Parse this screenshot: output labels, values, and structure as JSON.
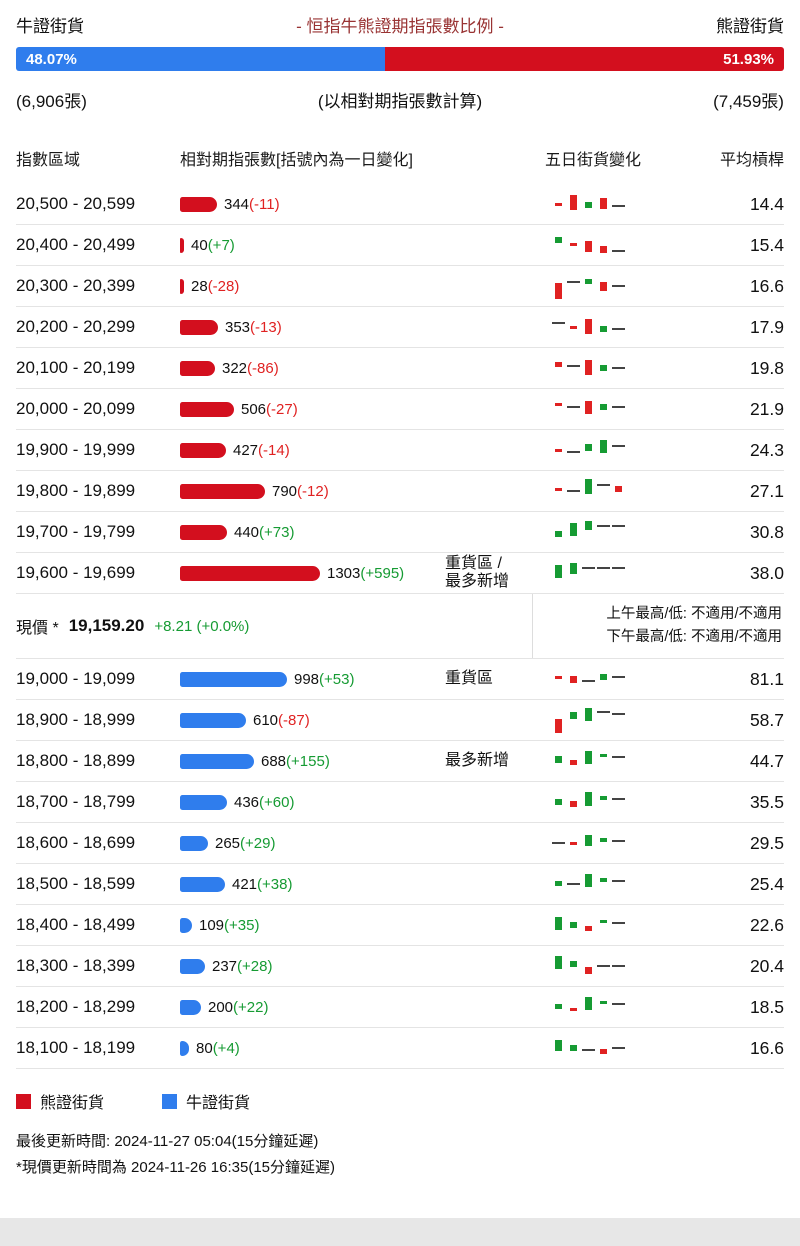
{
  "colors": {
    "bull": "#2f7ded",
    "bear": "#d30f1e",
    "pos": "#169b33",
    "neg": "#e02222",
    "title": "#993333",
    "dash": "#444444"
  },
  "header": {
    "bull_label": "牛證街貨",
    "title": "- 恒指牛熊證期指張數比例 -",
    "bear_label": "熊證街貨",
    "bull_pct": "48.07%",
    "bear_pct": "51.93%",
    "bull_pct_value": 48.07,
    "bull_count": "(6,906張)",
    "calc_note": "(以相對期指張數計算)",
    "bear_count": "(7,459張)"
  },
  "table": {
    "col_range": "指數區域",
    "col_contracts": "相對期指張數[括號內為一日變化]",
    "col_5day": "五日街貨變化",
    "col_leverage": "平均槓桿"
  },
  "max_value": 1303,
  "bar_max_width": 140,
  "bear_rows": [
    {
      "range": "20,500 - 20,599",
      "value": 344,
      "change": -11,
      "leverage": "14.4",
      "tag": "",
      "candles": [
        [
          "r",
          3,
          14
        ],
        [
          "r",
          15,
          6
        ],
        [
          "g",
          6,
          13
        ],
        [
          "r",
          11,
          9
        ],
        [
          "n",
          2,
          16
        ]
      ]
    },
    {
      "range": "20,400 - 20,499",
      "value": 40,
      "change": 7,
      "leverage": "15.4",
      "tag": "",
      "candles": [
        [
          "g",
          6,
          7
        ],
        [
          "r",
          3,
          13
        ],
        [
          "r",
          11,
          11
        ],
        [
          "r",
          7,
          16
        ],
        [
          "n",
          2,
          20
        ]
      ]
    },
    {
      "range": "20,300 - 20,399",
      "value": 28,
      "change": -28,
      "leverage": "16.6",
      "tag": "",
      "candles": [
        [
          "r",
          16,
          12
        ],
        [
          "n",
          2,
          10
        ],
        [
          "g",
          5,
          8
        ],
        [
          "r",
          9,
          11
        ],
        [
          "n",
          2,
          14
        ]
      ]
    },
    {
      "range": "20,200 - 20,299",
      "value": 353,
      "change": -13,
      "leverage": "17.9",
      "tag": "",
      "candles": [
        [
          "n",
          2,
          10
        ],
        [
          "r",
          3,
          14
        ],
        [
          "r",
          15,
          7
        ],
        [
          "g",
          6,
          14
        ],
        [
          "n",
          2,
          16
        ]
      ]
    },
    {
      "range": "20,100 - 20,199",
      "value": 322,
      "change": -86,
      "leverage": "19.8",
      "tag": "",
      "candles": [
        [
          "r",
          5,
          9
        ],
        [
          "n",
          2,
          12
        ],
        [
          "r",
          15,
          7
        ],
        [
          "g",
          6,
          12
        ],
        [
          "n",
          2,
          14
        ]
      ]
    },
    {
      "range": "20,000 - 20,099",
      "value": 506,
      "change": -27,
      "leverage": "21.9",
      "tag": "",
      "candles": [
        [
          "r",
          3,
          9
        ],
        [
          "n",
          2,
          12
        ],
        [
          "r",
          13,
          7
        ],
        [
          "g",
          6,
          10
        ],
        [
          "n",
          2,
          12
        ]
      ]
    },
    {
      "range": "19,900 - 19,999",
      "value": 427,
      "change": -14,
      "leverage": "24.3",
      "tag": "",
      "candles": [
        [
          "r",
          3,
          14
        ],
        [
          "n",
          2,
          16
        ],
        [
          "g",
          7,
          9
        ],
        [
          "g",
          13,
          5
        ],
        [
          "n",
          2,
          10
        ]
      ]
    },
    {
      "range": "19,800 - 19,899",
      "value": 790,
      "change": -12,
      "leverage": "27.1",
      "tag": "",
      "candles": [
        [
          "r",
          3,
          12
        ],
        [
          "n",
          2,
          14
        ],
        [
          "g",
          15,
          3
        ],
        [
          "n",
          2,
          8
        ],
        [
          "r",
          6,
          10
        ]
      ]
    },
    {
      "range": "19,700 - 19,799",
      "value": 440,
      "change": 73,
      "leverage": "30.8",
      "tag": "",
      "candles": [
        [
          "g",
          6,
          14
        ],
        [
          "g",
          13,
          6
        ],
        [
          "g",
          9,
          4
        ],
        [
          "n",
          2,
          8
        ],
        [
          "n",
          2,
          8
        ]
      ]
    },
    {
      "range": "19,600 - 19,699",
      "value": 1303,
      "change": 595,
      "leverage": "38.0",
      "tag": "重貨區 /\n最多新增",
      "candles": [
        [
          "g",
          13,
          7
        ],
        [
          "g",
          11,
          5
        ],
        [
          "n",
          2,
          9
        ],
        [
          "n",
          2,
          9
        ],
        [
          "n",
          2,
          9
        ]
      ]
    }
  ],
  "current": {
    "label": "現價 *",
    "price": "19,159.20",
    "change": "+8.21 (+0.0%)",
    "am": "上午最高/低: 不適用/不適用",
    "pm": "下午最高/低: 不適用/不適用"
  },
  "bull_rows": [
    {
      "range": "19,000 - 19,099",
      "value": 998,
      "change": 53,
      "leverage": "81.1",
      "tag": "重貨區",
      "candles": [
        [
          "r",
          3,
          12
        ],
        [
          "r",
          7,
          12
        ],
        [
          "n",
          2,
          16
        ],
        [
          "g",
          6,
          10
        ],
        [
          "n",
          2,
          12
        ]
      ]
    },
    {
      "range": "18,900 - 18,999",
      "value": 610,
      "change": -87,
      "leverage": "58.7",
      "tag": "",
      "candles": [
        [
          "r",
          14,
          14
        ],
        [
          "g",
          7,
          7
        ],
        [
          "g",
          13,
          3
        ],
        [
          "n",
          2,
          6
        ],
        [
          "n",
          2,
          8
        ]
      ]
    },
    {
      "range": "18,800 - 18,899",
      "value": 688,
      "change": 155,
      "leverage": "44.7",
      "tag": "最多新增",
      "candles": [
        [
          "g",
          7,
          10
        ],
        [
          "r",
          5,
          14
        ],
        [
          "g",
          13,
          5
        ],
        [
          "g",
          3,
          8
        ],
        [
          "n",
          2,
          10
        ]
      ]
    },
    {
      "range": "18,700 - 18,799",
      "value": 436,
      "change": 60,
      "leverage": "35.5",
      "tag": "",
      "candles": [
        [
          "g",
          6,
          12
        ],
        [
          "r",
          6,
          14
        ],
        [
          "g",
          14,
          5
        ],
        [
          "g",
          4,
          9
        ],
        [
          "n",
          2,
          11
        ]
      ]
    },
    {
      "range": "18,600 - 18,699",
      "value": 265,
      "change": 29,
      "leverage": "29.5",
      "tag": "",
      "candles": [
        [
          "n",
          2,
          14
        ],
        [
          "r",
          3,
          14
        ],
        [
          "g",
          11,
          7
        ],
        [
          "g",
          4,
          10
        ],
        [
          "n",
          2,
          12
        ]
      ]
    },
    {
      "range": "18,500 - 18,599",
      "value": 421,
      "change": 38,
      "leverage": "25.4",
      "tag": "",
      "candles": [
        [
          "g",
          5,
          12
        ],
        [
          "n",
          2,
          14
        ],
        [
          "g",
          13,
          5
        ],
        [
          "g",
          4,
          9
        ],
        [
          "n",
          2,
          11
        ]
      ]
    },
    {
      "range": "18,400 - 18,499",
      "value": 109,
      "change": 35,
      "leverage": "22.6",
      "tag": "",
      "candles": [
        [
          "g",
          13,
          7
        ],
        [
          "g",
          6,
          12
        ],
        [
          "r",
          5,
          16
        ],
        [
          "g",
          3,
          10
        ],
        [
          "n",
          2,
          12
        ]
      ]
    },
    {
      "range": "18,300 - 18,399",
      "value": 237,
      "change": 28,
      "leverage": "20.4",
      "tag": "",
      "candles": [
        [
          "g",
          13,
          5
        ],
        [
          "g",
          6,
          10
        ],
        [
          "r",
          7,
          16
        ],
        [
          "n",
          2,
          14
        ],
        [
          "n",
          2,
          14
        ]
      ]
    },
    {
      "range": "18,200 - 18,299",
      "value": 200,
      "change": 22,
      "leverage": "18.5",
      "tag": "",
      "candles": [
        [
          "g",
          5,
          12
        ],
        [
          "r",
          3,
          16
        ],
        [
          "g",
          13,
          5
        ],
        [
          "g",
          3,
          9
        ],
        [
          "n",
          2,
          11
        ]
      ]
    },
    {
      "range": "18,100 - 18,199",
      "value": 80,
      "change": 4,
      "leverage": "16.6",
      "tag": "",
      "candles": [
        [
          "g",
          11,
          7
        ],
        [
          "g",
          6,
          12
        ],
        [
          "n",
          2,
          16
        ],
        [
          "r",
          5,
          16
        ],
        [
          "n",
          2,
          14
        ]
      ]
    }
  ],
  "legend": {
    "bear_label": "熊證街貨",
    "bull_label": "牛證街貨"
  },
  "footer": {
    "line1": "最後更新時間: 2024-11-27 05:04(15分鐘延遲)",
    "line2": "*現價更新時間為 2024-11-26 16:35(15分鐘延遲)"
  },
  "chart_data": {
    "type": "bar",
    "title": "恒指牛熊證期指張數比例",
    "subtitle": "以相對期指張數計算",
    "bull_outstanding_pct": 48.07,
    "bear_outstanding_pct": 51.93,
    "bull_total_contracts": 6906,
    "bear_total_contracts": 7459,
    "categories": [
      "20,500 - 20,599",
      "20,400 - 20,499",
      "20,300 - 20,399",
      "20,200 - 20,299",
      "20,100 - 20,199",
      "20,000 - 20,099",
      "19,900 - 19,999",
      "19,800 - 19,899",
      "19,700 - 19,799",
      "19,600 - 19,699",
      "19,000 - 19,099",
      "18,900 - 18,999",
      "18,800 - 18,899",
      "18,700 - 18,799",
      "18,600 - 18,699",
      "18,500 - 18,599",
      "18,400 - 18,499",
      "18,300 - 18,399",
      "18,200 - 18,299",
      "18,100 - 18,199"
    ],
    "series": [
      {
        "name": "熊證街貨(相對期指張數)",
        "values": [
          344,
          40,
          28,
          353,
          322,
          506,
          427,
          790,
          440,
          1303,
          null,
          null,
          null,
          null,
          null,
          null,
          null,
          null,
          null,
          null
        ]
      },
      {
        "name": "牛證街貨(相對期指張數)",
        "values": [
          null,
          null,
          null,
          null,
          null,
          null,
          null,
          null,
          null,
          null,
          998,
          610,
          688,
          436,
          265,
          421,
          109,
          237,
          200,
          80
        ]
      }
    ],
    "one_day_change": [
      -11,
      7,
      -28,
      -13,
      -86,
      -27,
      -14,
      -12,
      73,
      595,
      53,
      -87,
      155,
      60,
      29,
      38,
      35,
      28,
      22,
      4
    ],
    "avg_leverage": [
      14.4,
      15.4,
      16.6,
      17.9,
      19.8,
      21.9,
      24.3,
      27.1,
      30.8,
      38.0,
      81.1,
      58.7,
      44.7,
      35.5,
      29.5,
      25.4,
      22.6,
      20.4,
      18.5,
      16.6
    ],
    "heavy_zones": [
      "19,600 - 19,699",
      "19,000 - 19,099"
    ],
    "most_new": [
      "19,600 - 19,699",
      "18,800 - 18,899"
    ],
    "current_price": 19159.2,
    "price_change": "+8.21 (+0.0%)"
  }
}
